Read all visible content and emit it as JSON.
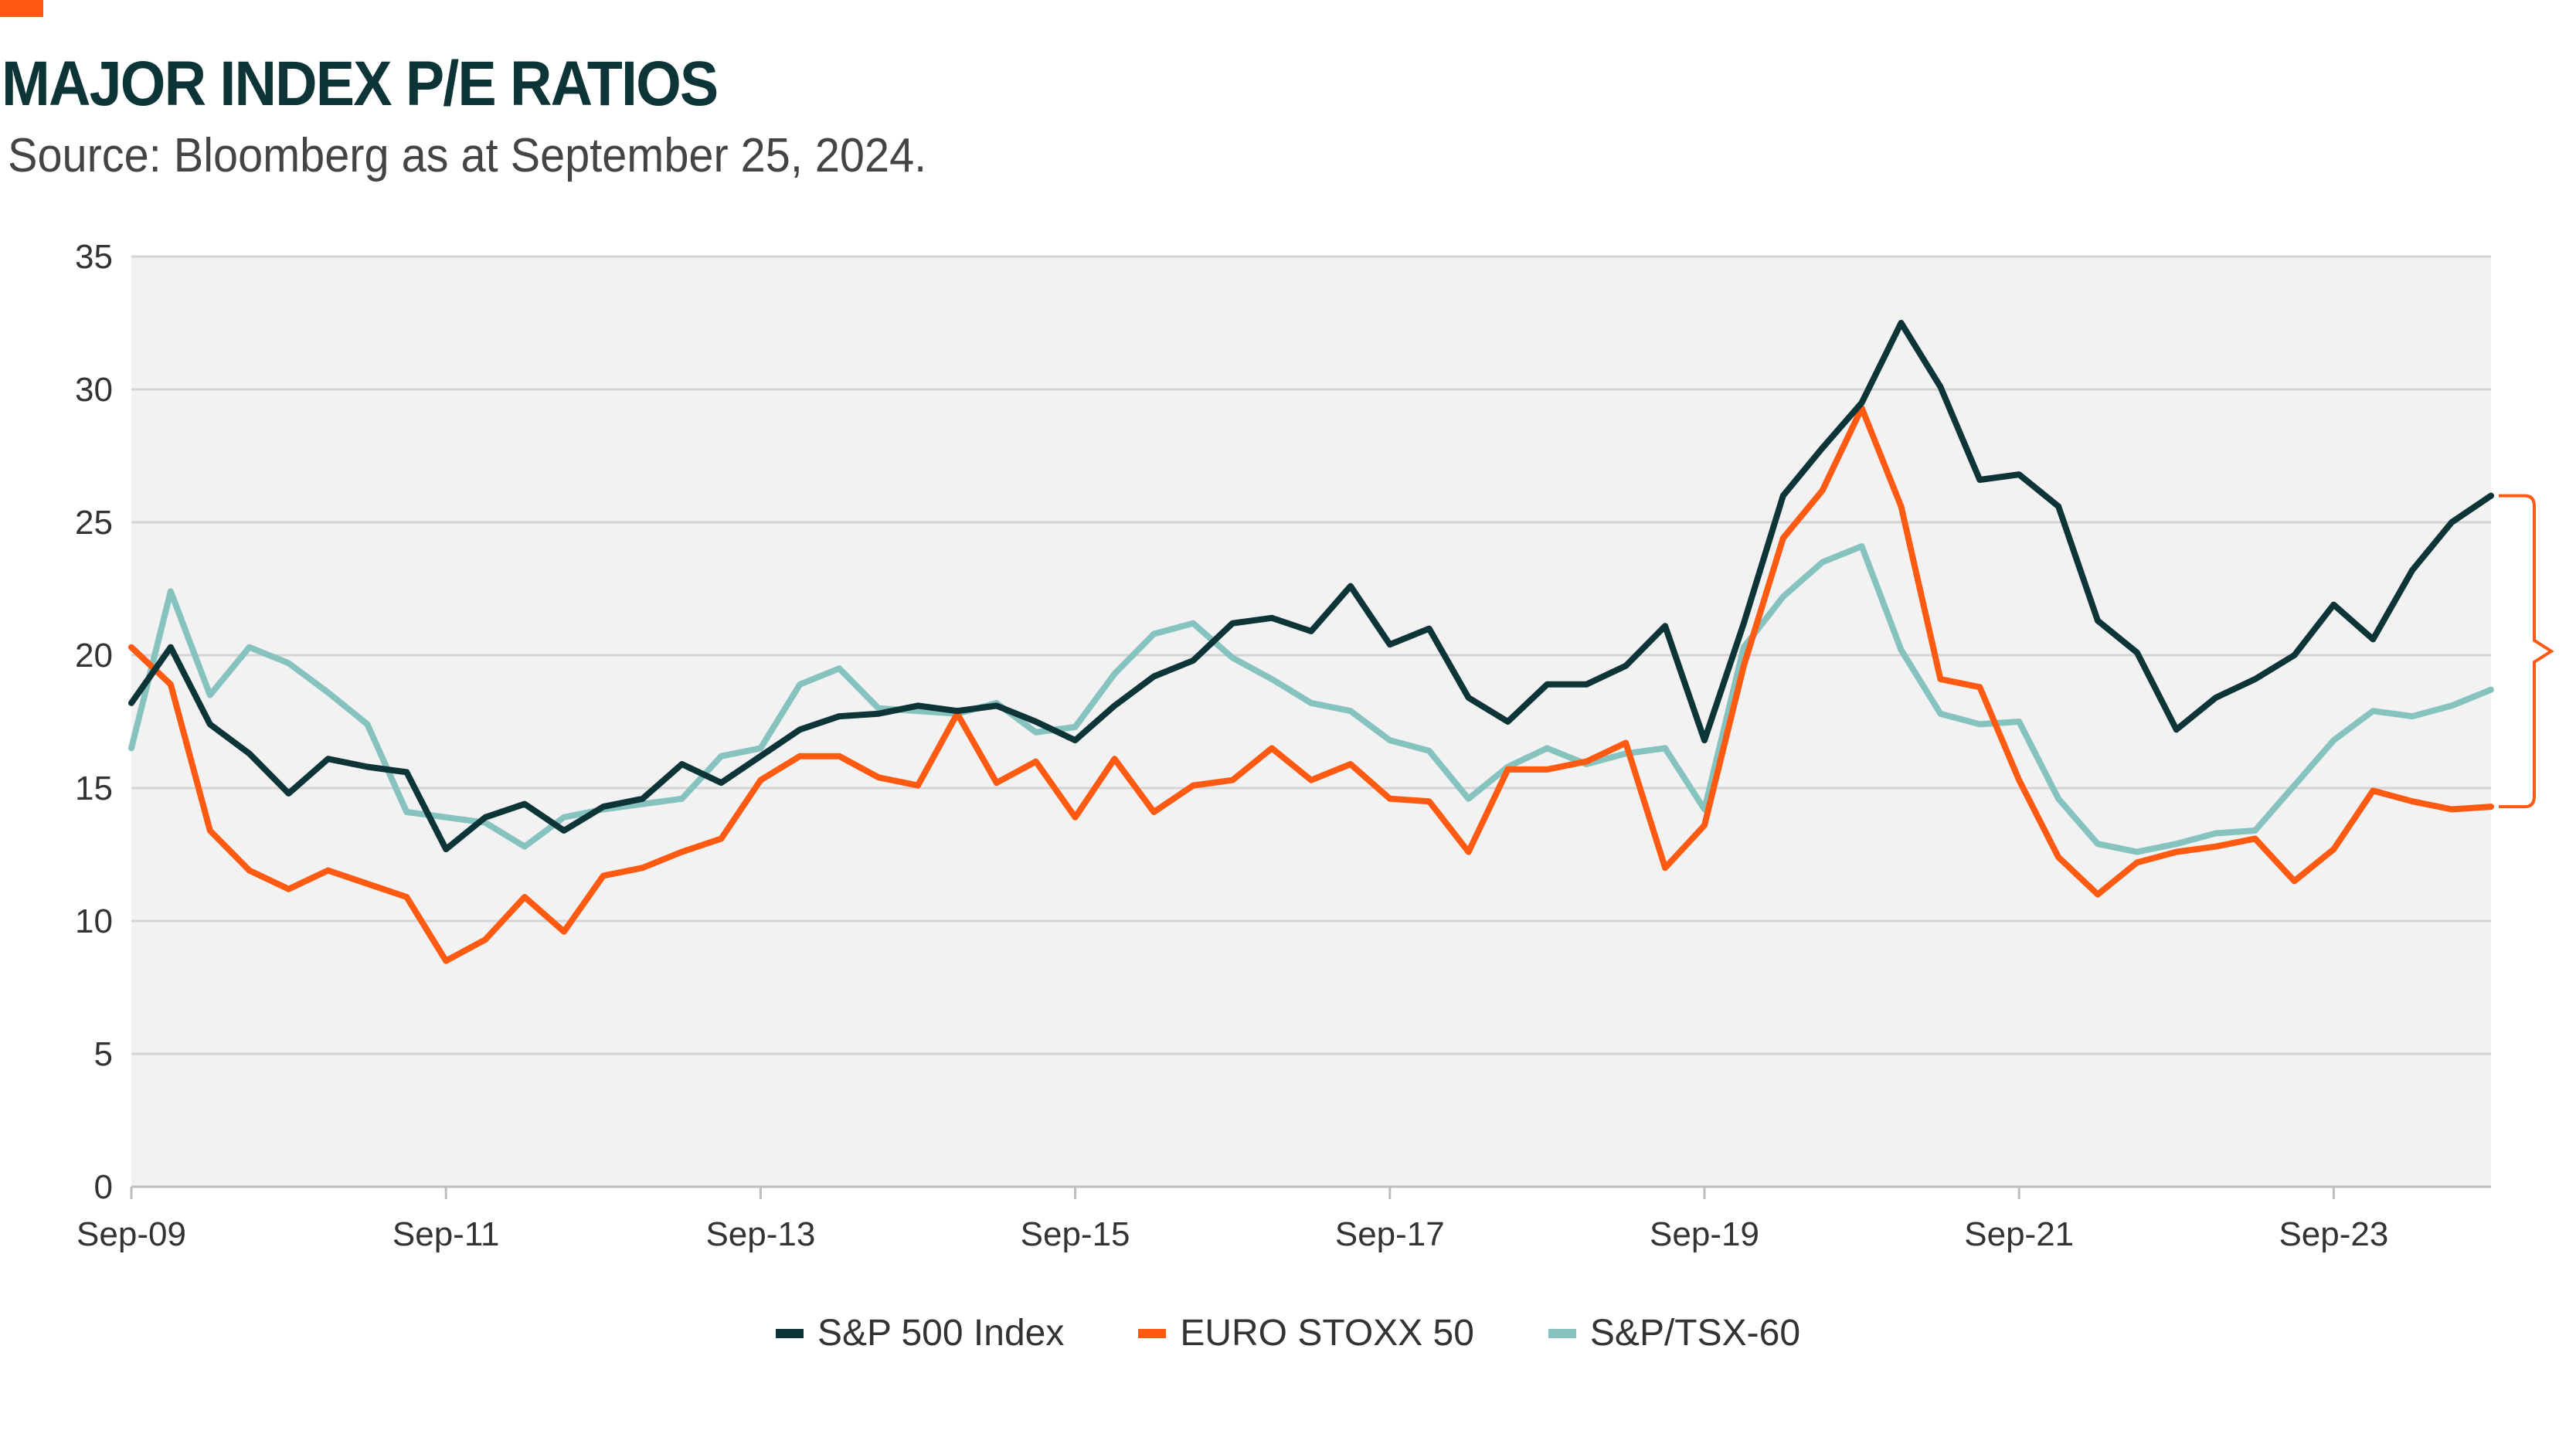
{
  "header": {
    "title": "MAJOR INDEX P/E RATIOS",
    "subtitle": "Source: Bloomberg as at September 25, 2024."
  },
  "colors": {
    "accent": "#ff5a12",
    "plot_background": "#f2f2f2",
    "grid": "#d4d4d4",
    "sp500": "#0d3436",
    "eurostoxx": "#ff5a12",
    "tsx": "#86c3bf"
  },
  "chart_data": {
    "type": "line",
    "title": "MAJOR INDEX P/E RATIOS",
    "xlabel": "",
    "ylabel": "",
    "ylim": [
      0,
      35
    ],
    "yticks": [
      "0",
      "5",
      "10",
      "15",
      "20",
      "25",
      "30",
      "35"
    ],
    "xticks": [
      "Sep-09",
      "Sep-11",
      "Sep-13",
      "Sep-15",
      "Sep-17",
      "Sep-19",
      "Sep-21",
      "Sep-23"
    ],
    "x_range": [
      "Sep-09",
      "Sep-24"
    ],
    "grid": "horizontal",
    "legend_position": "bottom-center",
    "annotation": "bracket spanning S&P 500 Index (≈26.0) to EURO STOXX 50 (≈14.3) at latest value",
    "series": [
      {
        "name": "S&P 500 Index",
        "color": "#0d3436",
        "x": [
          "2009-09",
          "2009-12",
          "2010-03",
          "2010-06",
          "2010-09",
          "2010-12",
          "2011-03",
          "2011-06",
          "2011-09",
          "2011-12",
          "2012-03",
          "2012-06",
          "2012-09",
          "2012-12",
          "2013-03",
          "2013-06",
          "2013-09",
          "2013-12",
          "2014-03",
          "2014-06",
          "2014-09",
          "2014-12",
          "2015-03",
          "2015-06",
          "2015-09",
          "2015-12",
          "2016-03",
          "2016-06",
          "2016-09",
          "2016-12",
          "2017-03",
          "2017-06",
          "2017-09",
          "2017-12",
          "2018-03",
          "2018-06",
          "2018-09",
          "2018-12",
          "2019-03",
          "2019-06",
          "2019-09",
          "2019-12",
          "2020-03",
          "2020-06",
          "2020-09",
          "2020-12",
          "2021-03",
          "2021-06",
          "2021-09",
          "2021-12",
          "2022-03",
          "2022-06",
          "2022-09",
          "2022-12",
          "2023-03",
          "2023-06",
          "2023-09",
          "2023-12",
          "2024-03",
          "2024-06",
          "2024-09"
        ],
        "y": [
          18.2,
          20.3,
          17.4,
          16.3,
          14.8,
          16.1,
          15.8,
          15.6,
          12.7,
          13.9,
          14.4,
          13.4,
          14.3,
          14.6,
          15.9,
          15.2,
          16.2,
          17.2,
          17.7,
          17.8,
          18.1,
          17.9,
          18.1,
          17.5,
          16.8,
          18.1,
          19.2,
          19.8,
          21.2,
          21.4,
          20.9,
          22.6,
          20.4,
          21.0,
          18.4,
          17.5,
          18.9,
          18.9,
          19.6,
          21.1,
          16.8,
          21.2,
          26.0,
          27.8,
          29.5,
          32.5,
          30.1,
          26.6,
          26.8,
          25.6,
          21.3,
          20.1,
          17.2,
          18.4,
          19.1,
          20.0,
          21.9,
          20.6,
          23.2,
          25.0,
          26.0
        ]
      },
      {
        "name": "EURO STOXX 50",
        "color": "#ff5a12",
        "x": [
          "2009-09",
          "2009-12",
          "2010-03",
          "2010-06",
          "2010-09",
          "2010-12",
          "2011-03",
          "2011-06",
          "2011-09",
          "2011-12",
          "2012-03",
          "2012-06",
          "2012-09",
          "2012-12",
          "2013-03",
          "2013-06",
          "2013-09",
          "2013-12",
          "2014-03",
          "2014-06",
          "2014-09",
          "2014-12",
          "2015-03",
          "2015-06",
          "2015-09",
          "2015-12",
          "2016-03",
          "2016-06",
          "2016-09",
          "2016-12",
          "2017-03",
          "2017-06",
          "2017-09",
          "2017-12",
          "2018-03",
          "2018-06",
          "2018-09",
          "2018-12",
          "2019-03",
          "2019-06",
          "2019-09",
          "2019-12",
          "2020-03",
          "2020-06",
          "2020-09",
          "2020-12",
          "2021-03",
          "2021-06",
          "2021-09",
          "2021-12",
          "2022-03",
          "2022-06",
          "2022-09",
          "2022-12",
          "2023-03",
          "2023-06",
          "2023-09",
          "2023-12",
          "2024-03",
          "2024-06",
          "2024-09"
        ],
        "y": [
          20.3,
          18.9,
          13.4,
          11.9,
          11.2,
          11.9,
          11.4,
          10.9,
          8.5,
          9.3,
          10.9,
          9.6,
          11.7,
          12.0,
          12.6,
          13.1,
          15.3,
          16.2,
          16.2,
          15.4,
          15.1,
          17.8,
          15.2,
          16.0,
          13.9,
          16.1,
          14.1,
          15.1,
          15.3,
          16.5,
          15.3,
          15.9,
          14.6,
          14.5,
          12.6,
          15.7,
          15.7,
          16.0,
          16.7,
          12.0,
          13.6,
          19.6,
          24.4,
          26.2,
          29.3,
          25.6,
          19.1,
          18.8,
          15.3,
          12.4,
          11.0,
          12.2,
          12.6,
          12.8,
          13.1,
          11.5,
          12.7,
          14.9,
          14.5,
          14.2,
          14.3
        ]
      },
      {
        "name": "S&P/TSX-60",
        "color": "#86c3bf",
        "x": [
          "2009-09",
          "2009-12",
          "2010-03",
          "2010-06",
          "2010-09",
          "2010-12",
          "2011-03",
          "2011-06",
          "2011-09",
          "2011-12",
          "2012-03",
          "2012-06",
          "2012-09",
          "2012-12",
          "2013-03",
          "2013-06",
          "2013-09",
          "2013-12",
          "2014-03",
          "2014-06",
          "2014-09",
          "2014-12",
          "2015-03",
          "2015-06",
          "2015-09",
          "2015-12",
          "2016-03",
          "2016-06",
          "2016-09",
          "2016-12",
          "2017-03",
          "2017-06",
          "2017-09",
          "2017-12",
          "2018-03",
          "2018-06",
          "2018-09",
          "2018-12",
          "2019-03",
          "2019-06",
          "2019-09",
          "2019-12",
          "2020-03",
          "2020-06",
          "2020-09",
          "2020-12",
          "2021-03",
          "2021-06",
          "2021-09",
          "2021-12",
          "2022-03",
          "2022-06",
          "2022-09",
          "2022-12",
          "2023-03",
          "2023-06",
          "2023-09",
          "2023-12",
          "2024-03",
          "2024-06",
          "2024-09"
        ],
        "y": [
          16.5,
          22.4,
          18.5,
          20.3,
          19.7,
          18.6,
          17.4,
          14.1,
          13.9,
          13.7,
          12.8,
          13.9,
          14.2,
          14.4,
          14.6,
          16.2,
          16.5,
          18.9,
          19.5,
          18.0,
          17.9,
          17.8,
          18.2,
          17.1,
          17.3,
          19.3,
          20.8,
          21.2,
          19.9,
          19.1,
          18.2,
          17.9,
          16.8,
          16.4,
          14.6,
          15.8,
          16.5,
          15.9,
          16.3,
          16.5,
          14.2,
          20.3,
          22.2,
          23.5,
          24.1,
          20.2,
          17.8,
          17.4,
          17.5,
          14.6,
          12.9,
          12.6,
          12.9,
          13.3,
          13.4,
          15.1,
          16.8,
          17.9,
          17.7,
          18.1,
          18.7
        ]
      }
    ]
  }
}
